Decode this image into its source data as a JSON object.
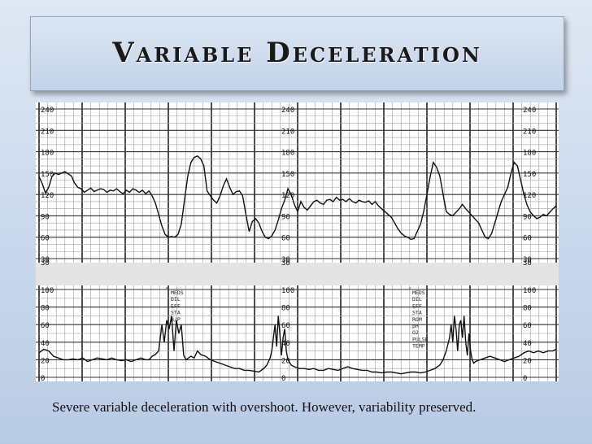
{
  "slide": {
    "title": "Variable Deceleration",
    "caption": "Severe variable deceleration with overshoot. However, variability  preserved."
  },
  "chart_data": {
    "type": "line",
    "fhr_panel": {
      "ylim": [
        30,
        240
      ],
      "tick_labels": [
        "240",
        "210",
        "180",
        "150",
        "120",
        "90",
        "60",
        "30"
      ],
      "tick_values": [
        240,
        210,
        180,
        150,
        120,
        90,
        60,
        30
      ],
      "series": [
        {
          "x": [
            0,
            4,
            8,
            12,
            16,
            20,
            24,
            28,
            32,
            36,
            40,
            44,
            48,
            52,
            56,
            60,
            64,
            68,
            72,
            76,
            80,
            84,
            88,
            92,
            96,
            100,
            104,
            108,
            112,
            116,
            120,
            124,
            128,
            132,
            136,
            140,
            144,
            148,
            152,
            156,
            160,
            164,
            168,
            172,
            176,
            180,
            184,
            188,
            192,
            196,
            200,
            204,
            208,
            212,
            216,
            220,
            224,
            228,
            232,
            236,
            240,
            244,
            248,
            252,
            256,
            260,
            264,
            268,
            272,
            276,
            280,
            284,
            288,
            292,
            296,
            300,
            304,
            308,
            312,
            316,
            320,
            324,
            328,
            332,
            336,
            340,
            344,
            348,
            352,
            356,
            360,
            364,
            368,
            372,
            376,
            380,
            384,
            388,
            392,
            396,
            400,
            404,
            408,
            412,
            416,
            420,
            424,
            428,
            432,
            436,
            440,
            444,
            448,
            452,
            456,
            460,
            464,
            468,
            472,
            476,
            480,
            484,
            488,
            492,
            496,
            500,
            504,
            508,
            512,
            516,
            520,
            524,
            528,
            532,
            536,
            540,
            544,
            548,
            552,
            556,
            560,
            564,
            568,
            572,
            576,
            580,
            584,
            588,
            592,
            596,
            600,
            604,
            608,
            612,
            616,
            620,
            624,
            628,
            632,
            636,
            640
          ],
          "y": [
            145,
            135,
            122,
            130,
            145,
            150,
            148,
            150,
            152,
            149,
            146,
            136,
            130,
            128,
            123,
            126,
            129,
            124,
            126,
            128,
            127,
            123,
            126,
            125,
            128,
            124,
            121,
            126,
            123,
            128,
            126,
            123,
            126,
            121,
            125,
            118,
            108,
            92,
            76,
            64,
            60,
            61,
            60,
            64,
            78,
            112,
            145,
            165,
            172,
            174,
            170,
            160,
            125,
            118,
            112,
            108,
            118,
            132,
            142,
            130,
            120,
            124,
            125,
            118,
            92,
            68,
            82,
            86,
            80,
            68,
            60,
            58,
            62,
            70,
            84,
            100,
            112,
            128,
            120,
            106,
            96,
            110,
            102,
            98,
            104,
            110,
            112,
            108,
            106,
            112,
            113,
            110,
            116,
            112,
            113,
            110,
            114,
            110,
            108,
            112,
            110,
            109,
            111,
            106,
            110,
            104,
            100,
            96,
            92,
            88,
            80,
            72,
            66,
            62,
            60,
            57,
            58,
            68,
            78,
            96,
            120,
            145,
            165,
            158,
            146,
            120,
            96,
            92,
            90,
            95,
            100,
            106,
            100,
            95,
            90,
            85,
            80,
            70,
            60,
            58,
            65,
            80,
            95,
            110,
            120,
            130,
            150,
            165,
            160,
            140,
            120,
            105,
            95,
            90,
            86,
            88,
            92,
            90,
            95,
            100,
            104
          ]
        }
      ]
    },
    "uc_panel": {
      "ylim": [
        0,
        100
      ],
      "tick_labels": [
        "100",
        "80",
        "60",
        "40",
        "20",
        "0"
      ],
      "tick_values": [
        100,
        80,
        60,
        40,
        20,
        0
      ],
      "series": [
        {
          "x": [
            0,
            6,
            12,
            18,
            24,
            30,
            36,
            42,
            48,
            54,
            60,
            66,
            72,
            78,
            84,
            90,
            96,
            102,
            108,
            114,
            120,
            126,
            132,
            136,
            140,
            144,
            148,
            150,
            152,
            155,
            158,
            161,
            164,
            167,
            170,
            173,
            176,
            179,
            182,
            185,
            188,
            192,
            196,
            200,
            206,
            212,
            218,
            224,
            230,
            236,
            242,
            248,
            254,
            260,
            266,
            272,
            278,
            282,
            286,
            288,
            290,
            292,
            294,
            296,
            298,
            300,
            302,
            304,
            306,
            308,
            312,
            316,
            322,
            328,
            334,
            340,
            346,
            352,
            358,
            364,
            370,
            376,
            382,
            388,
            394,
            400,
            406,
            412,
            418,
            424,
            430,
            436,
            442,
            448,
            454,
            460,
            466,
            472,
            478,
            484,
            490,
            496,
            500,
            504,
            508,
            510,
            512,
            514,
            516,
            518,
            520,
            522,
            524,
            526,
            528,
            530,
            532,
            534,
            536,
            538,
            540,
            546,
            552,
            558,
            564,
            570,
            576,
            582,
            588,
            594,
            600,
            606,
            612,
            618,
            624,
            630,
            636,
            640
          ],
          "y": [
            28,
            32,
            30,
            24,
            22,
            20,
            20,
            21,
            20,
            22,
            18,
            20,
            22,
            21,
            20,
            22,
            20,
            19,
            20,
            18,
            20,
            22,
            20,
            20,
            24,
            26,
            30,
            45,
            60,
            40,
            65,
            55,
            70,
            30,
            65,
            50,
            60,
            25,
            20,
            22,
            24,
            22,
            30,
            26,
            24,
            20,
            18,
            16,
            14,
            12,
            10,
            10,
            8,
            8,
            7,
            6,
            10,
            14,
            22,
            30,
            45,
            60,
            35,
            70,
            50,
            25,
            45,
            55,
            30,
            20,
            14,
            12,
            10,
            10,
            9,
            10,
            8,
            8,
            10,
            9,
            8,
            10,
            12,
            10,
            9,
            8,
            8,
            6,
            6,
            5,
            6,
            6,
            5,
            4,
            5,
            6,
            6,
            5,
            6,
            8,
            10,
            14,
            20,
            30,
            45,
            60,
            40,
            70,
            55,
            30,
            60,
            65,
            45,
            70,
            40,
            25,
            50,
            30,
            20,
            16,
            18,
            20,
            22,
            24,
            22,
            20,
            18,
            20,
            22,
            24,
            28,
            30,
            28,
            30,
            28,
            30,
            30,
            32
          ]
        }
      ]
    },
    "strip_gap_label": "30",
    "annotation_groups": [
      [
        "MEDS",
        "DIL",
        "EFF",
        "STA",
        "B/P"
      ],
      [
        "MEDS",
        "DIL",
        "EFF",
        "STA",
        "ROM",
        "pH",
        "O2",
        "PULSE",
        "TEMP"
      ]
    ]
  }
}
